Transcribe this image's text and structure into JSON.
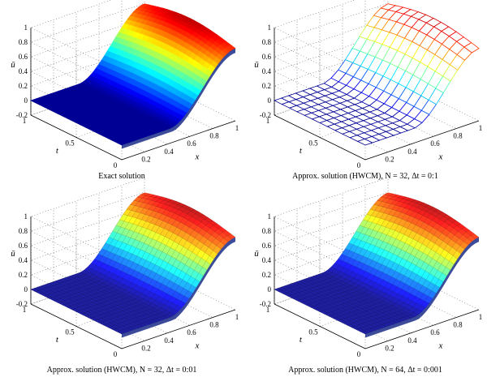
{
  "chart_data": [
    {
      "type": "surface",
      "style": "smooth-filled",
      "caption": "Exact solution",
      "xlabel": "x",
      "ylabel": "t",
      "zlabel": "ū",
      "xlim": [
        0,
        1
      ],
      "ylim": [
        0,
        1
      ],
      "zlim": [
        -0.2,
        1
      ],
      "xticks": [
        "0.2",
        "0.4",
        "0.6",
        "0.8",
        "1"
      ],
      "yticks": [
        "0",
        "0.5",
        "1"
      ],
      "zticks": [
        "-0.2",
        "0",
        "0.2",
        "0.4",
        "0.6",
        "0.8",
        "1"
      ],
      "grid": true,
      "colormap": "jet"
    },
    {
      "type": "surface",
      "style": "wireframe",
      "caption": "Approx. solution (HWCM), N = 32, Δt = 0:1",
      "xlabel": "x",
      "ylabel": "t",
      "zlabel": "ū",
      "xlim": [
        0,
        1
      ],
      "ylim": [
        0,
        1
      ],
      "zlim": [
        -0.2,
        1
      ],
      "xticks": [
        "0.2",
        "0.4",
        "0.6",
        "0.8",
        "1"
      ],
      "yticks": [
        "0",
        "0.5",
        "1"
      ],
      "zticks": [
        "-0.2",
        "0",
        "0.2",
        "0.4",
        "0.6",
        "0.8",
        "1"
      ],
      "grid": true,
      "colormap": "jet"
    },
    {
      "type": "surface",
      "style": "filled-mesh",
      "caption": "Approx. solution (HWCM), N = 32, Δt = 0:01",
      "xlabel": "x",
      "ylabel": "t",
      "zlabel": "ū",
      "xlim": [
        0,
        1
      ],
      "ylim": [
        0,
        1
      ],
      "zlim": [
        -0.2,
        1
      ],
      "xticks": [
        "0.2",
        "0.4",
        "0.6",
        "0.8",
        "1"
      ],
      "yticks": [
        "0",
        "0.5",
        "1"
      ],
      "zticks": [
        "-0.2",
        "0",
        "0.2",
        "0.4",
        "0.6",
        "0.8",
        "1"
      ],
      "grid": true,
      "colormap": "jet"
    },
    {
      "type": "surface",
      "style": "filled-mesh",
      "caption": "Approx. solution (HWCM), N = 64, Δt = 0:001",
      "xlabel": "x",
      "ylabel": "t",
      "zlabel": "ū",
      "xlim": [
        0,
        1
      ],
      "ylim": [
        0,
        1
      ],
      "zlim": [
        -0.2,
        1
      ],
      "xticks": [
        "0.2",
        "0.4",
        "0.6",
        "0.8",
        "1"
      ],
      "yticks": [
        "0",
        "0.5",
        "1"
      ],
      "zticks": [
        "-0.2",
        "0",
        "0.2",
        "0.4",
        "0.6",
        "0.8",
        "1"
      ],
      "grid": true,
      "colormap": "jet"
    }
  ]
}
